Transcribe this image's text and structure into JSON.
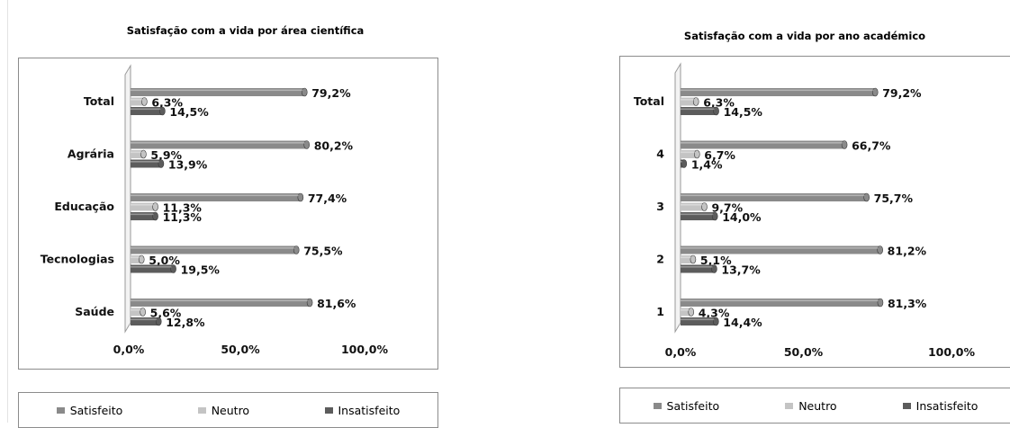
{
  "chart_data": [
    {
      "type": "bar",
      "orientation": "horizontal",
      "title": "Satisfação com a vida por área científica",
      "categories": [
        "Total",
        "Agrária",
        "Educação",
        "Tecnologias",
        "Saúde"
      ],
      "series": [
        {
          "name": "Satisfeito",
          "values": [
            79.2,
            80.2,
            77.4,
            75.5,
            81.6
          ],
          "labels": [
            "79,2%",
            "80,2%",
            "77,4%",
            "75,5%",
            "81,6%"
          ]
        },
        {
          "name": "Neutro",
          "values": [
            6.3,
            5.9,
            11.3,
            5.0,
            5.6
          ],
          "labels": [
            "6,3%",
            "5,9%",
            "11,3%",
            "5,0%",
            "5,6%"
          ]
        },
        {
          "name": "Insatisfeito",
          "values": [
            14.5,
            13.9,
            11.3,
            19.5,
            12.8
          ],
          "labels": [
            "14,5%",
            "13,9%",
            "11,3%",
            "19,5%",
            "12,8%"
          ]
        }
      ],
      "xlim": [
        0,
        100
      ],
      "xticks": [
        "0,0%",
        "50,0%",
        "100,0%"
      ],
      "legend_position": "bottom"
    },
    {
      "type": "bar",
      "orientation": "horizontal",
      "title": "Satisfação com a vida por ano académico",
      "categories": [
        "Total",
        "4",
        "3",
        "2",
        "1"
      ],
      "series": [
        {
          "name": "Satisfeito",
          "values": [
            79.2,
            66.7,
            75.7,
            81.2,
            81.3
          ],
          "labels": [
            "79,2%",
            "66,7%",
            "75,7%",
            "81,2%",
            "81,3%"
          ]
        },
        {
          "name": "Neutro",
          "values": [
            6.3,
            6.7,
            9.7,
            5.1,
            4.3
          ],
          "labels": [
            "6,3%",
            "6,7%",
            "9,7%",
            "5,1%",
            "4,3%"
          ]
        },
        {
          "name": "Insatisfeito",
          "values": [
            14.5,
            1.4,
            14.0,
            13.7,
            14.4
          ],
          "labels": [
            "14,5%",
            "1,4%",
            "14,0%",
            "13,7%",
            "14,4%"
          ]
        }
      ],
      "xlim": [
        0,
        100
      ],
      "xticks": [
        "0,0%",
        "50,0%",
        "100,0%"
      ],
      "legend_position": "bottom"
    }
  ],
  "colors": {
    "Satisfeito": "#8a8a8a",
    "Neutro": "#c4c4c4",
    "Insatisfeito": "#5c5c5c"
  }
}
